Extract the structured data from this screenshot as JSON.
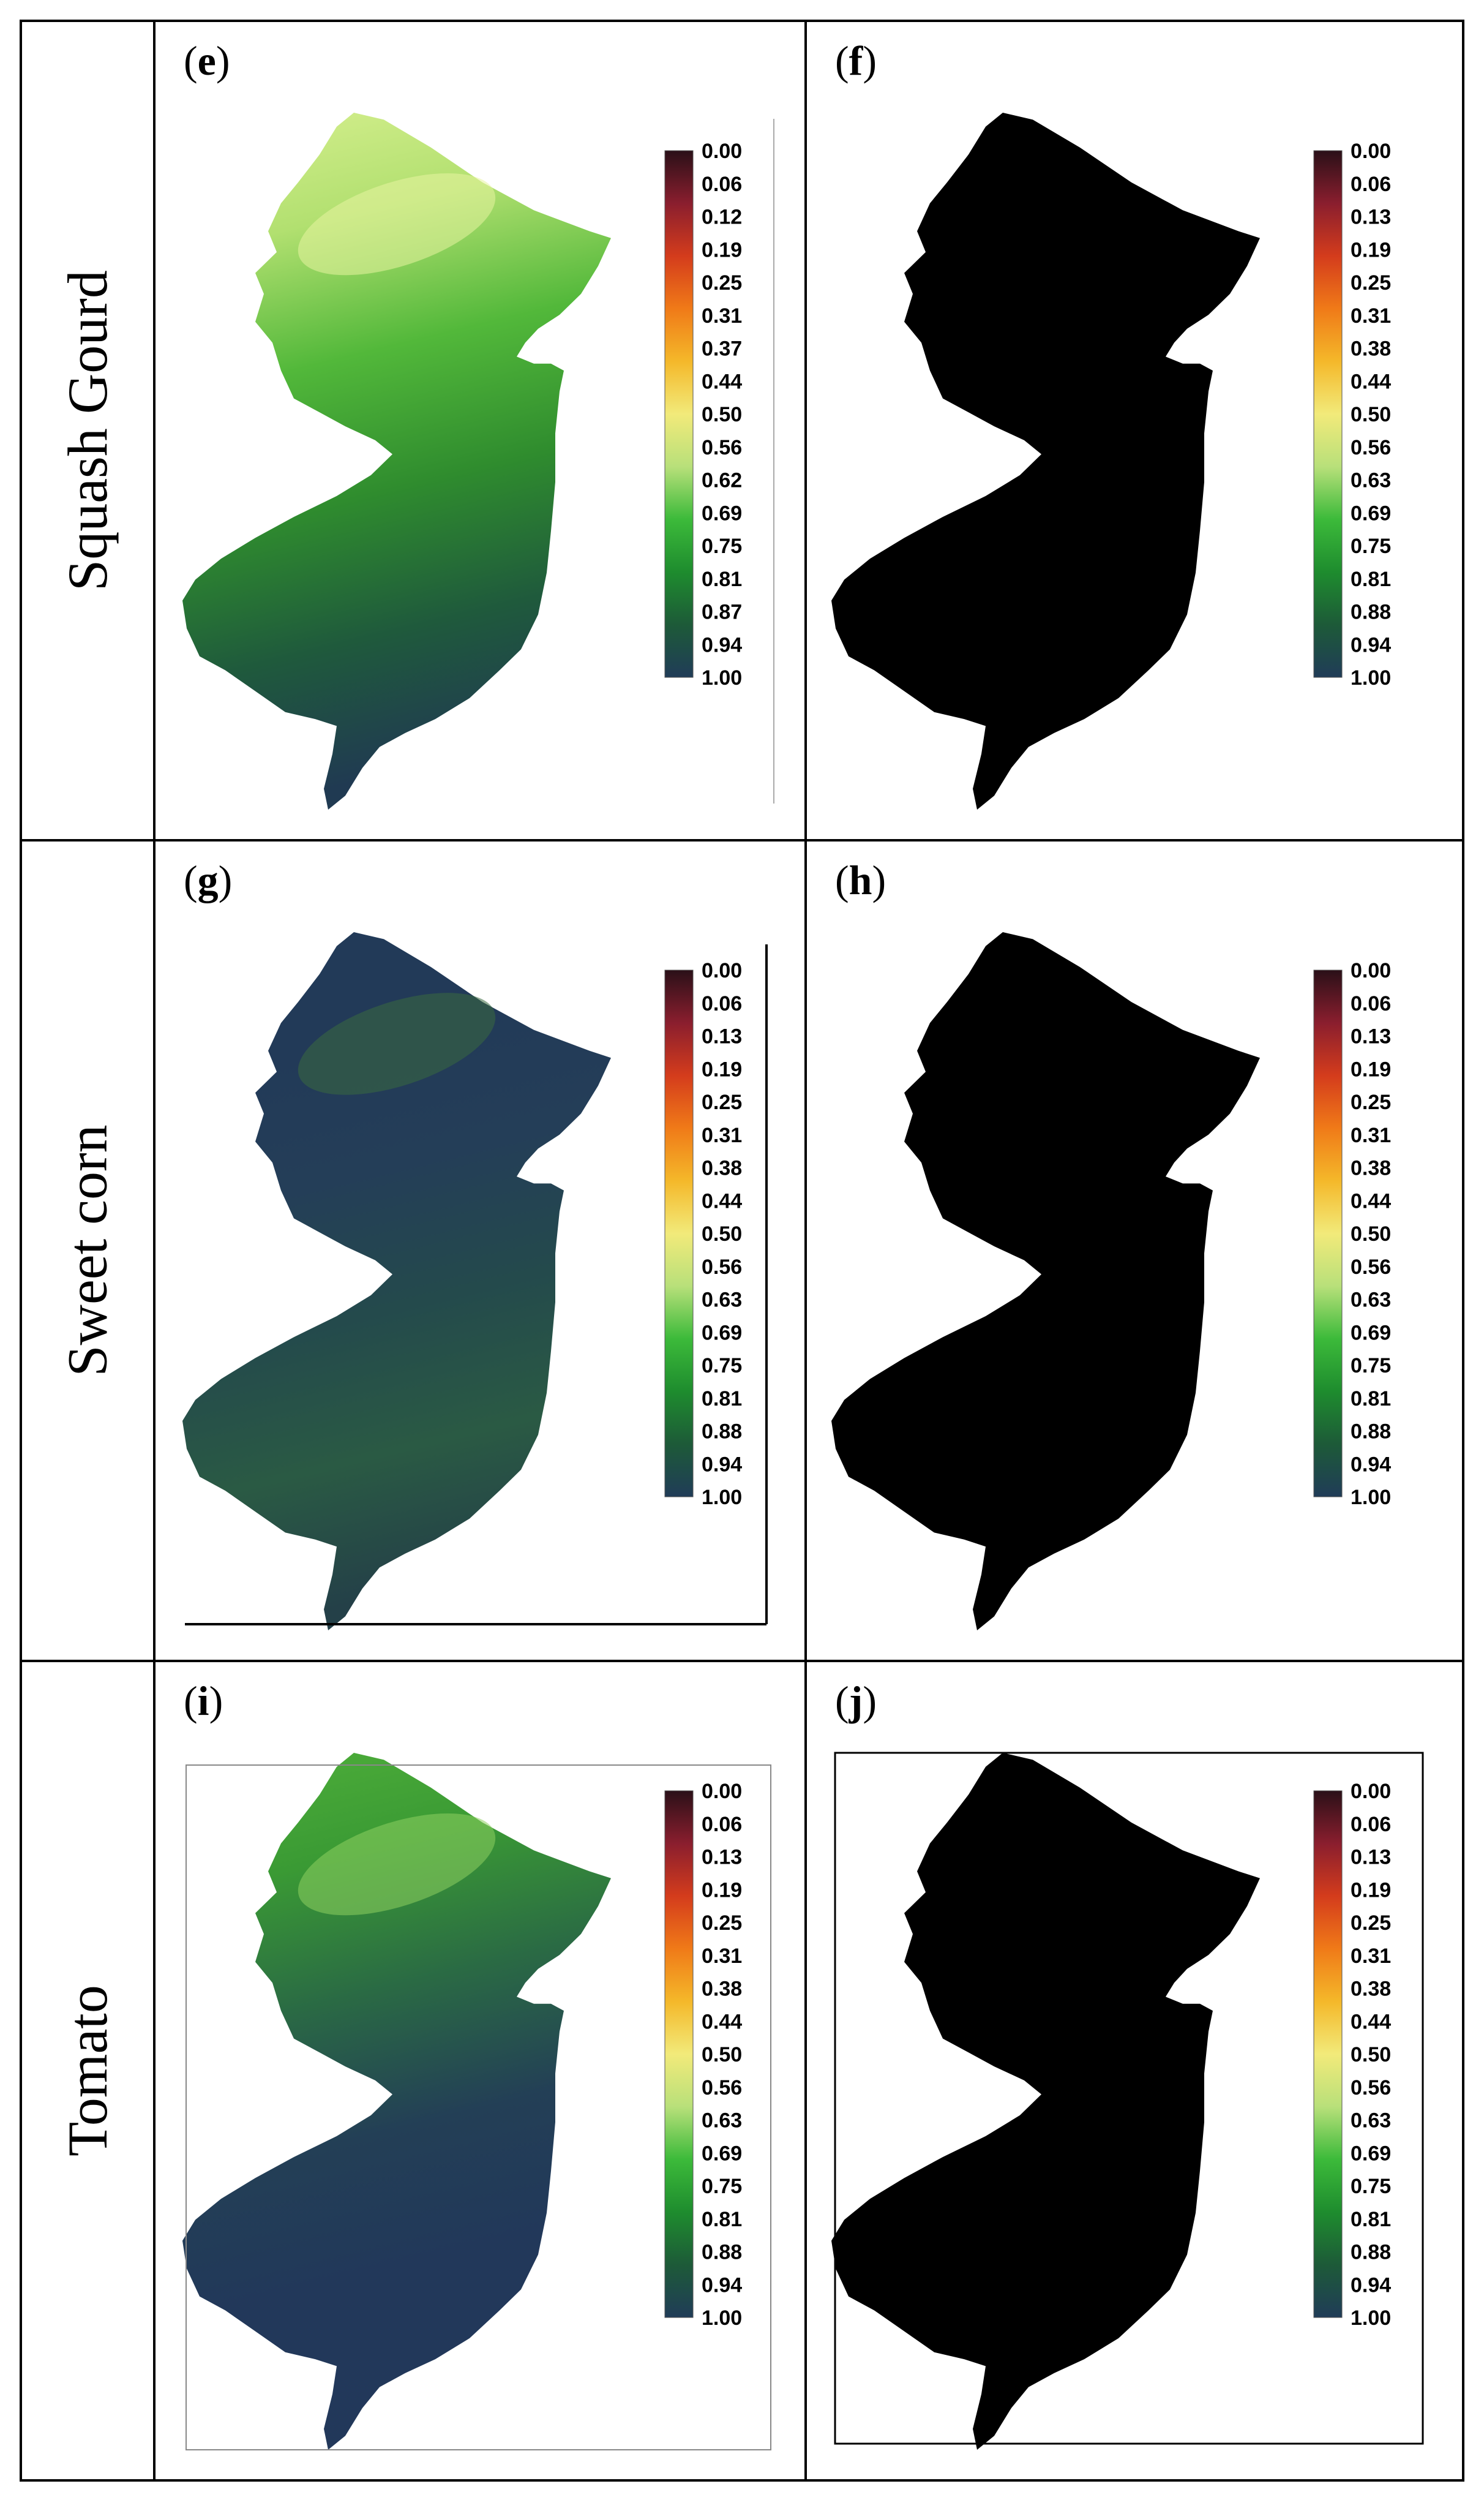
{
  "rows": [
    {
      "crop": "Squash Gourd",
      "panels": [
        {
          "letter": "e",
          "fill": "gradient",
          "stops": [
            "#d8f090",
            "#b2e070",
            "#52b83a",
            "#2f8c2e",
            "#1f5a3c",
            "#203a52"
          ],
          "bright": "#e8f4a0",
          "legend": [
            "0.00",
            "0.06",
            "0.12",
            "0.19",
            "0.25",
            "0.31",
            "0.37",
            "0.44",
            "0.50",
            "0.56",
            "0.62",
            "0.69",
            "0.75",
            "0.81",
            "0.87",
            "0.94",
            "1.00"
          ]
        },
        {
          "letter": "f",
          "fill": "black",
          "legend": [
            "0.00",
            "0.06",
            "0.13",
            "0.19",
            "0.25",
            "0.31",
            "0.38",
            "0.44",
            "0.50",
            "0.56",
            "0.63",
            "0.69",
            "0.75",
            "0.81",
            "0.88",
            "0.94",
            "1.00"
          ]
        }
      ]
    },
    {
      "crop": "Sweet corn",
      "panels": [
        {
          "letter": "g",
          "fill": "gradient",
          "stops": [
            "#223a58",
            "#223a58",
            "#243e58",
            "#244a4c",
            "#2a5a44",
            "#244048"
          ],
          "bright": "#3a6a40",
          "legend": [
            "0.00",
            "0.06",
            "0.13",
            "0.19",
            "0.25",
            "0.31",
            "0.38",
            "0.44",
            "0.50",
            "0.56",
            "0.63",
            "0.69",
            "0.75",
            "0.81",
            "0.88",
            "0.94",
            "1.00"
          ]
        },
        {
          "letter": "h",
          "fill": "black",
          "legend": [
            "0.00",
            "0.06",
            "0.13",
            "0.19",
            "0.25",
            "0.31",
            "0.38",
            "0.44",
            "0.50",
            "0.56",
            "0.63",
            "0.69",
            "0.75",
            "0.81",
            "0.88",
            "0.94",
            "1.00"
          ]
        }
      ]
    },
    {
      "crop": "Tomato",
      "panels": [
        {
          "letter": "i",
          "fill": "gradient",
          "stops": [
            "#50b03a",
            "#3a9a34",
            "#2a6a44",
            "#233f56",
            "#22385a",
            "#22385a"
          ],
          "bright": "#8ed060",
          "legend": [
            "0.00",
            "0.06",
            "0.13",
            "0.19",
            "0.25",
            "0.31",
            "0.38",
            "0.44",
            "0.50",
            "0.56",
            "0.63",
            "0.69",
            "0.75",
            "0.81",
            "0.88",
            "0.94",
            "1.00"
          ]
        },
        {
          "letter": "j",
          "fill": "black",
          "legend": [
            "0.00",
            "0.06",
            "0.13",
            "0.19",
            "0.25",
            "0.31",
            "0.38",
            "0.44",
            "0.50",
            "0.56",
            "0.63",
            "0.69",
            "0.75",
            "0.81",
            "0.88",
            "0.94",
            "1.00"
          ]
        }
      ]
    }
  ],
  "colorbar": [
    "#2a1018",
    "#8a1e2e",
    "#d43c1c",
    "#f07a18",
    "#f4b82a",
    "#f2ea7a",
    "#b8e07a",
    "#3cba3a",
    "#1e8c2e",
    "#1d5a38",
    "#203c58"
  ]
}
